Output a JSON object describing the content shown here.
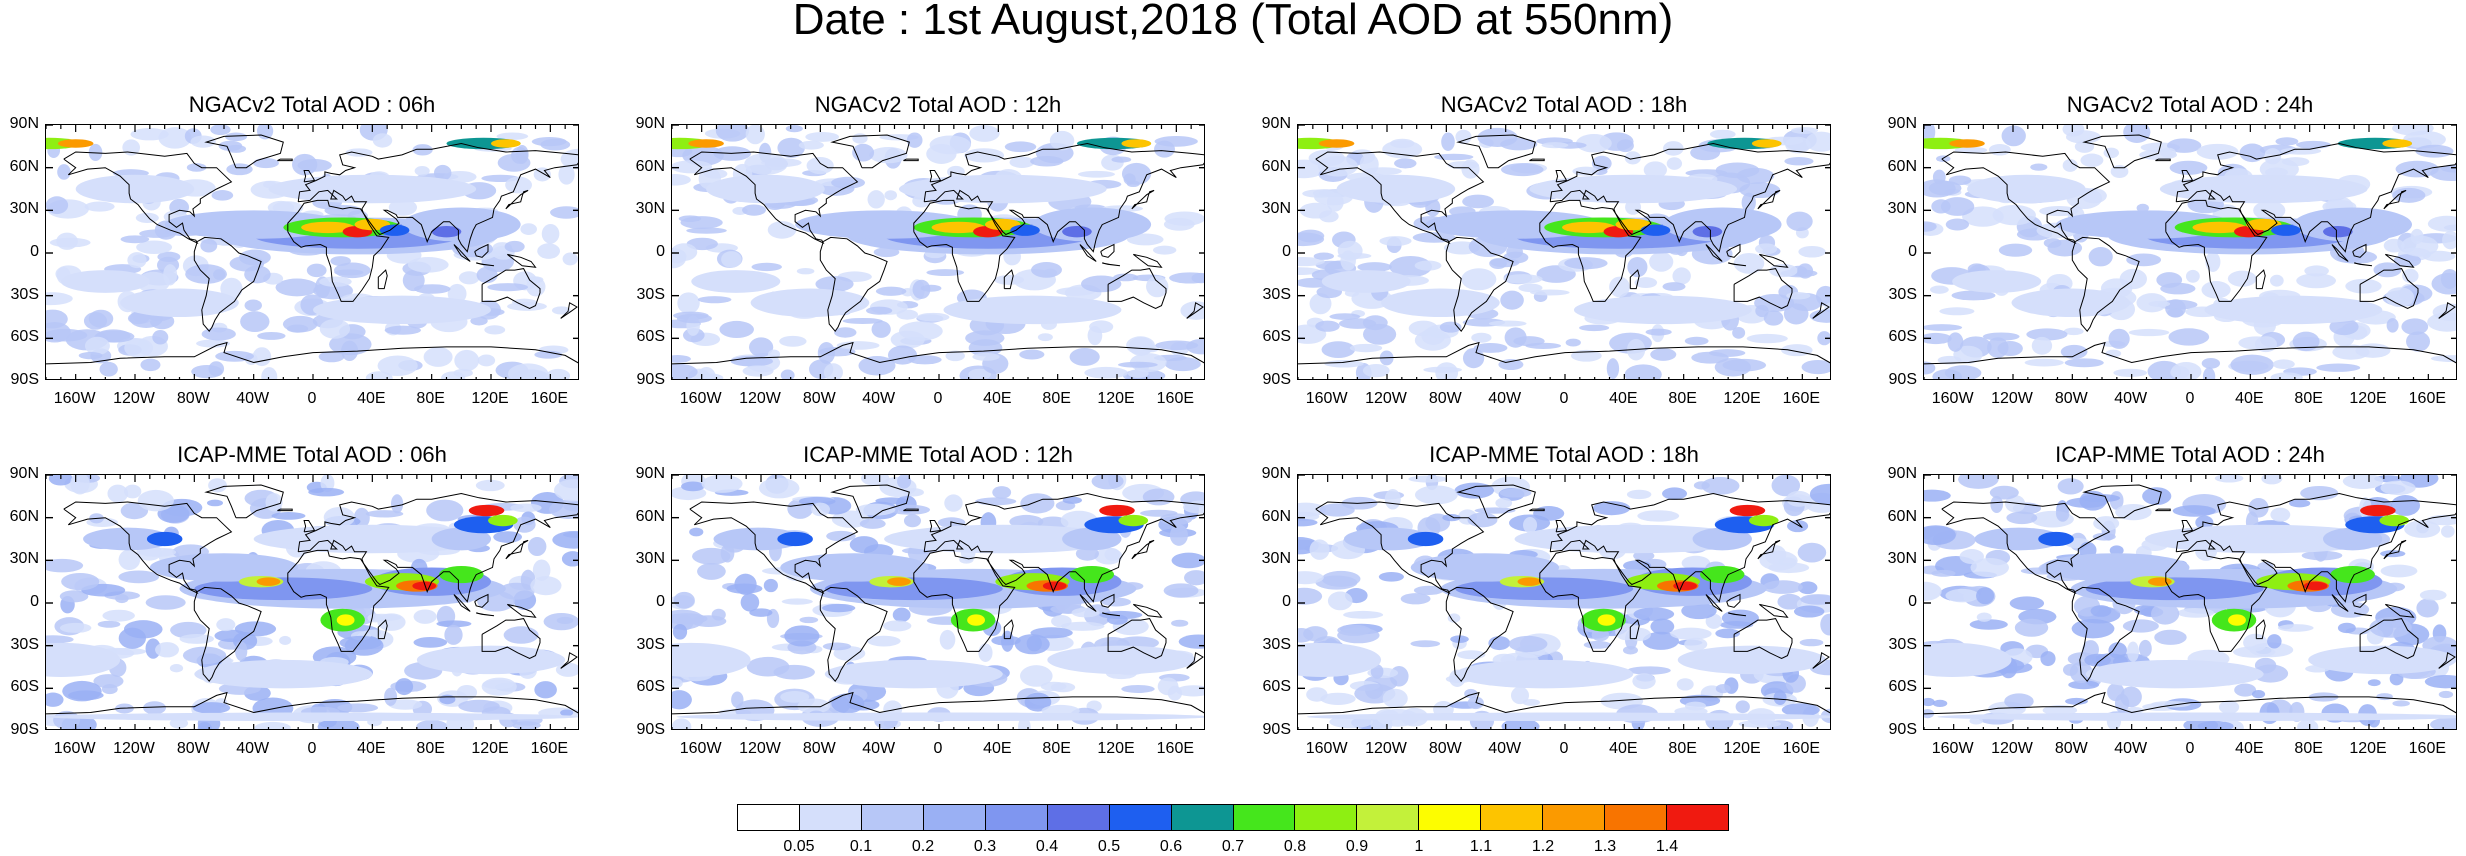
{
  "title": "Date : 1st August,2018 (Total AOD at 550nm)",
  "panels": [
    {
      "title": "NGACv2 Total AOD : 06h",
      "model": "NGAC",
      "lead": 6
    },
    {
      "title": "NGACv2 Total AOD : 12h",
      "model": "NGAC",
      "lead": 12
    },
    {
      "title": "NGACv2 Total AOD : 18h",
      "model": "NGAC",
      "lead": 18
    },
    {
      "title": "NGACv2 Total AOD : 24h",
      "model": "NGAC",
      "lead": 24
    },
    {
      "title": "ICAP-MME Total AOD : 06h",
      "model": "ICAP",
      "lead": 6
    },
    {
      "title": "ICAP-MME Total AOD : 12h",
      "model": "ICAP",
      "lead": 12
    },
    {
      "title": "ICAP-MME Total AOD : 18h",
      "model": "ICAP",
      "lead": 18
    },
    {
      "title": "ICAP-MME Total AOD : 24h",
      "model": "ICAP",
      "lead": 24
    }
  ],
  "lat_labels": [
    "90N",
    "60N",
    "30N",
    "0",
    "30S",
    "60S",
    "90S"
  ],
  "lon_labels": [
    "160W",
    "120W",
    "80W",
    "40W",
    "0",
    "40E",
    "80E",
    "120E",
    "160E"
  ],
  "colorbar": {
    "labels": [
      "0.05",
      "0.1",
      "0.2",
      "0.3",
      "0.4",
      "0.5",
      "0.6",
      "0.7",
      "0.8",
      "0.9",
      "1",
      "1.1",
      "1.2",
      "1.3",
      "1.4"
    ],
    "colors": [
      "#ffffff",
      "#d5dffb",
      "#b7c7f7",
      "#9ab0f4",
      "#7f96f0",
      "#5e6fe6",
      "#1e5ff0",
      "#0d9693",
      "#45e61c",
      "#8eef12",
      "#c3f13a",
      "#fdfd00",
      "#fdc400",
      "#fb9a00",
      "#f87400",
      "#f01a10"
    ]
  }
}
